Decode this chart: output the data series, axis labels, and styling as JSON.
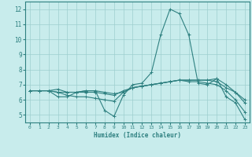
{
  "xlabel": "Humidex (Indice chaleur)",
  "ylabel": "",
  "bg_color": "#c8ecec",
  "grid_color": "#9ecece",
  "line_color": "#2e8080",
  "xlim": [
    -0.5,
    23.5
  ],
  "ylim": [
    4.5,
    12.5
  ],
  "xticks": [
    0,
    1,
    2,
    3,
    4,
    5,
    6,
    7,
    8,
    9,
    10,
    11,
    12,
    13,
    14,
    15,
    16,
    17,
    18,
    19,
    20,
    21,
    22,
    23
  ],
  "yticks": [
    5,
    6,
    7,
    8,
    9,
    10,
    11,
    12
  ],
  "lines": [
    {
      "x": [
        0,
        1,
        2,
        3,
        4,
        5,
        6,
        7,
        8,
        9,
        10,
        11,
        12,
        13,
        14,
        15,
        16,
        17,
        18,
        19,
        20,
        21,
        22,
        23
      ],
      "y": [
        6.6,
        6.6,
        6.6,
        6.2,
        6.2,
        6.5,
        6.6,
        6.6,
        5.3,
        4.9,
        6.3,
        7.0,
        7.1,
        7.8,
        10.3,
        12.0,
        11.7,
        10.3,
        7.1,
        7.0,
        7.4,
        6.2,
        5.8,
        4.7
      ]
    },
    {
      "x": [
        0,
        1,
        2,
        3,
        4,
        5,
        6,
        7,
        8,
        9,
        10,
        11,
        12,
        13,
        14,
        15,
        16,
        17,
        18,
        19,
        20,
        21,
        22,
        23
      ],
      "y": [
        6.6,
        6.6,
        6.6,
        6.5,
        6.5,
        6.5,
        6.6,
        6.6,
        6.5,
        6.4,
        6.5,
        6.8,
        6.9,
        7.0,
        7.1,
        7.2,
        7.3,
        7.3,
        7.3,
        7.3,
        7.2,
        6.8,
        6.5,
        6.0
      ]
    },
    {
      "x": [
        0,
        1,
        2,
        3,
        4,
        5,
        6,
        7,
        8,
        9,
        10,
        11,
        12,
        13,
        14,
        15,
        16,
        17,
        18,
        19,
        20,
        21,
        22,
        23
      ],
      "y": [
        6.6,
        6.6,
        6.6,
        6.7,
        6.5,
        6.5,
        6.5,
        6.5,
        6.4,
        6.3,
        6.6,
        6.8,
        6.9,
        7.0,
        7.1,
        7.2,
        7.3,
        7.3,
        7.3,
        7.3,
        7.4,
        7.0,
        6.5,
        5.8
      ]
    },
    {
      "x": [
        0,
        1,
        2,
        3,
        4,
        5,
        6,
        7,
        8,
        9,
        10,
        11,
        12,
        13,
        14,
        15,
        16,
        17,
        18,
        19,
        20,
        21,
        22,
        23
      ],
      "y": [
        6.6,
        6.6,
        6.6,
        6.5,
        6.3,
        6.2,
        6.2,
        6.1,
        6.0,
        5.9,
        6.5,
        6.8,
        6.9,
        7.0,
        7.1,
        7.2,
        7.3,
        7.2,
        7.2,
        7.1,
        7.0,
        6.6,
        6.0,
        5.2
      ]
    }
  ]
}
